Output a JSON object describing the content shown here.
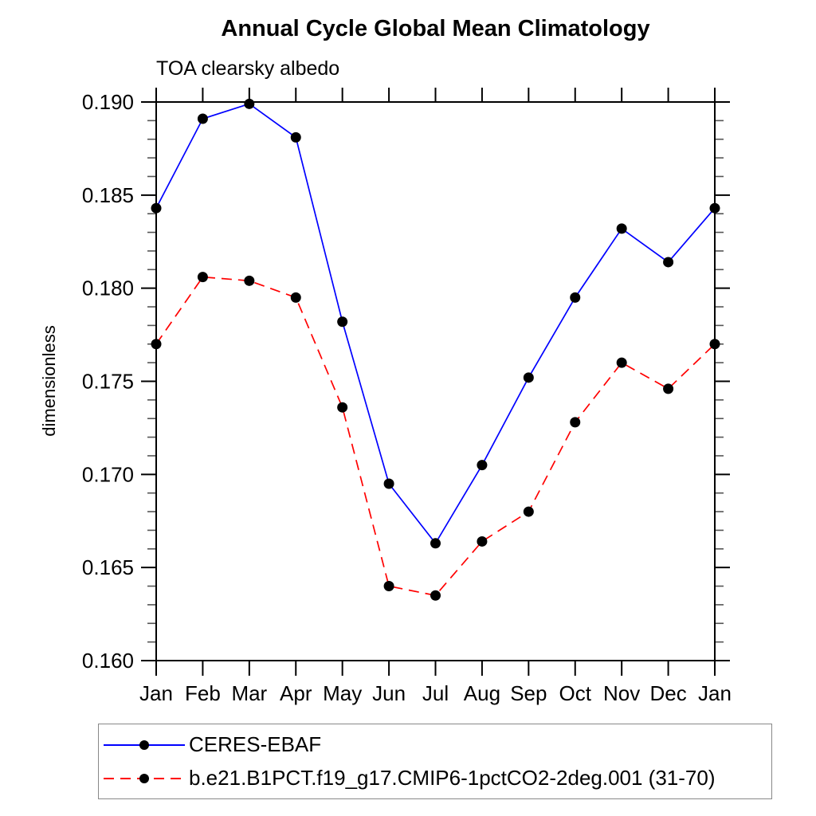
{
  "title": "Annual Cycle Global Mean Climatology",
  "subtitle": "TOA clearsky albedo",
  "chart_data": {
    "type": "line",
    "x_categories": [
      "Jan",
      "Feb",
      "Mar",
      "Apr",
      "May",
      "Jun",
      "Jul",
      "Aug",
      "Sep",
      "Oct",
      "Nov",
      "Dec",
      "Jan"
    ],
    "xlabel": "",
    "ylabel": "dimensionless",
    "ylim": [
      0.16,
      0.19
    ],
    "ytick_step": 0.005,
    "yminor_step": 0.001,
    "ytick_labels": [
      "0.160",
      "0.165",
      "0.170",
      "0.175",
      "0.180",
      "0.185",
      "0.190"
    ],
    "grid": false,
    "legend_position": "bottom-left-box",
    "marker_color": "#000000",
    "series": [
      {
        "name": "CERES-EBAF",
        "color": "#0000ff",
        "line_style": "solid",
        "marker": "filled-circle",
        "values": [
          0.1843,
          0.1891,
          0.1899,
          0.1881,
          0.1782,
          0.1695,
          0.1663,
          0.1705,
          0.1752,
          0.1795,
          0.1832,
          0.1814,
          0.1843
        ]
      },
      {
        "name": "b.e21.B1PCT.f19_g17.CMIP6-1pctCO2-2deg.001 (31-70)",
        "color": "#ff0000",
        "line_style": "dashed",
        "marker": "filled-circle",
        "values": [
          0.177,
          0.1806,
          0.1804,
          0.1795,
          0.1736,
          0.164,
          0.1635,
          0.1664,
          0.168,
          0.1728,
          0.176,
          0.1746,
          0.177
        ]
      }
    ]
  }
}
